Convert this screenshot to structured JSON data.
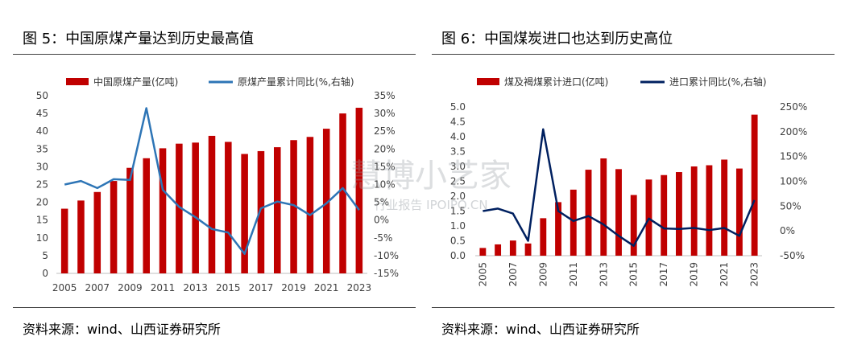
{
  "left": {
    "title": "图 5：中国原煤产量达到历史最高值",
    "source": "资料来源：wind、山西证券研究所",
    "chart_data": {
      "type": "bar",
      "categories": [
        "2005",
        "2006",
        "2007",
        "2008",
        "2009",
        "2010",
        "2011",
        "2012",
        "2013",
        "2014",
        "2015",
        "2016",
        "2017",
        "2018",
        "2019",
        "2020",
        "2021",
        "2022",
        "2023"
      ],
      "x_tick_labels": [
        "2005",
        "2007",
        "2009",
        "2011",
        "2013",
        "2015",
        "2017",
        "2019",
        "2021",
        "2023"
      ],
      "series": [
        {
          "name": "中国原煤产量(亿吨)",
          "type": "bar",
          "axis": "left",
          "color": "#C00000",
          "values": [
            18.2,
            20.5,
            22.9,
            26.0,
            29.7,
            32.4,
            35.2,
            36.5,
            36.8,
            38.7,
            37.0,
            33.6,
            34.4,
            35.5,
            37.5,
            38.4,
            40.7,
            45.0,
            46.6
          ]
        },
        {
          "name": "原煤产量累计同比(%,右轴)",
          "type": "line",
          "axis": "right",
          "color": "#2E75B6",
          "values": [
            10.0,
            11.0,
            9.0,
            11.5,
            11.3,
            31.5,
            8.5,
            3.7,
            0.8,
            -2.5,
            -3.5,
            -9.5,
            3.3,
            5.2,
            4.2,
            1.4,
            4.7,
            9.0,
            2.8
          ]
        }
      ],
      "y_left_ticks": [
        "0",
        "5",
        "10",
        "15",
        "20",
        "25",
        "30",
        "35",
        "40",
        "45",
        "50"
      ],
      "y_right_ticks": [
        "-15%",
        "-10%",
        "-5%",
        "0%",
        "5%",
        "10%",
        "15%",
        "20%",
        "25%",
        "30%",
        "35%"
      ],
      "ylim_left": [
        0,
        50
      ],
      "ylim_right": [
        -15,
        35
      ],
      "legend_position": "top",
      "grid": false
    }
  },
  "right": {
    "title": "图 6：中国煤炭进口也达到历史高位",
    "source": "资料来源：wind、山西证券研究所",
    "chart_data": {
      "type": "bar",
      "categories": [
        "2005",
        "2006",
        "2007",
        "2008",
        "2009",
        "2010",
        "2011",
        "2012",
        "2013",
        "2014",
        "2015",
        "2016",
        "2017",
        "2018",
        "2019",
        "2020",
        "2021",
        "2022",
        "2023"
      ],
      "x_tick_labels": [
        "2005",
        "2007",
        "2009",
        "2011",
        "2013",
        "2015",
        "2017",
        "2019",
        "2021",
        "2023"
      ],
      "x_tick_rotation": -90,
      "series": [
        {
          "name": "煤及褐煤累计进口(亿吨)",
          "type": "bar",
          "axis": "left",
          "color": "#C00000",
          "values": [
            0.26,
            0.38,
            0.51,
            0.41,
            1.26,
            1.8,
            2.22,
            2.89,
            3.27,
            2.91,
            2.04,
            2.56,
            2.71,
            2.81,
            3.0,
            3.04,
            3.23,
            2.93,
            4.74
          ]
        },
        {
          "name": "进口累计同比(%,右轴)",
          "type": "line",
          "axis": "right",
          "color": "#002060",
          "values": [
            40,
            45,
            35,
            -20,
            205,
            40,
            20,
            30,
            13,
            -10,
            -30,
            25,
            5,
            4,
            6,
            1.5,
            6,
            -10,
            62
          ]
        }
      ],
      "y_left_ticks": [
        "0.0",
        "0.5",
        "1.0",
        "1.5",
        "2.0",
        "2.5",
        "3.0",
        "3.5",
        "4.0",
        "4.5",
        "5.0"
      ],
      "y_right_ticks": [
        "-50%",
        "0%",
        "50%",
        "100%",
        "150%",
        "200%",
        "250%"
      ],
      "ylim_left": [
        0,
        5
      ],
      "ylim_right": [
        -50,
        250
      ],
      "legend_position": "top",
      "grid": false
    }
  },
  "watermark": {
    "main": "慧博小艺家",
    "sub": "行业报告 IPOIPO.CN"
  }
}
